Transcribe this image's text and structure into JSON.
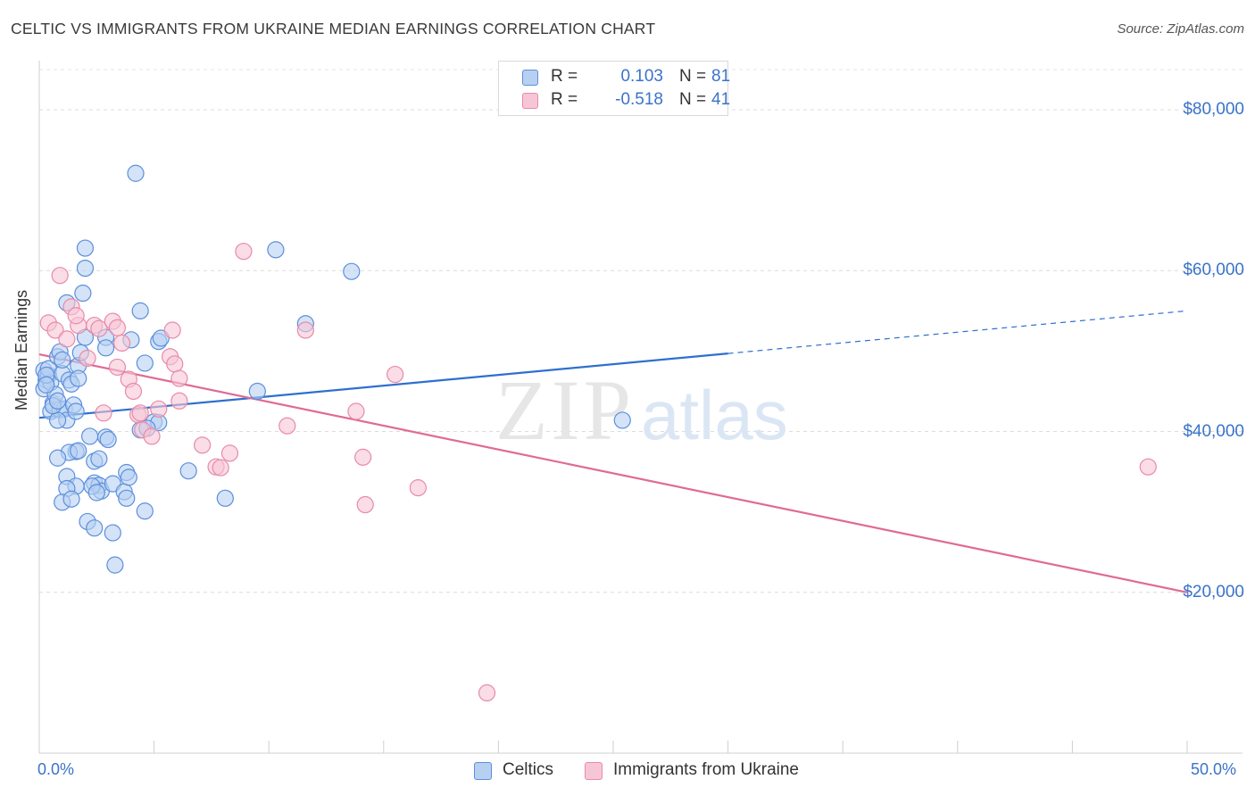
{
  "title": "CELTIC VS IMMIGRANTS FROM UKRAINE MEDIAN EARNINGS CORRELATION CHART",
  "source": "Source: ZipAtlas.com",
  "watermark": {
    "zip": "ZIP",
    "atlas": "atlas"
  },
  "legend_top": [
    {
      "r_label": "R =",
      "r_value": "0.103",
      "n_label": "N =",
      "n_value": "81",
      "color": "#5b8fdc",
      "fill": "#b7d0f2"
    },
    {
      "r_label": "R =",
      "r_value": "-0.518",
      "n_label": "N =",
      "n_value": "41",
      "color": "#e98aa8",
      "fill": "#f7c6d6"
    }
  ],
  "bottom_legend": [
    {
      "label": "Celtics",
      "color": "#5b8fdc",
      "fill": "#b7d0f2"
    },
    {
      "label": "Immigrants from Ukraine",
      "color": "#e98aa8",
      "fill": "#f7c6d6"
    }
  ],
  "chart_data": {
    "type": "scatter",
    "title": "CELTIC VS IMMIGRANTS FROM UKRAINE MEDIAN EARNINGS CORRELATION CHART",
    "xlabel": "",
    "ylabel": "Median Earnings",
    "xlim": [
      0,
      50
    ],
    "ylim": [
      0,
      85000
    ],
    "x_tick_labels": [
      "0.0%",
      "50.0%"
    ],
    "y_ticks": [
      20000,
      40000,
      60000,
      80000
    ],
    "y_tick_labels": [
      "$20,000",
      "$40,000",
      "$60,000",
      "$80,000"
    ],
    "grid": "horizontal dashed",
    "legend_placement": "top-center and bottom",
    "series": [
      {
        "name": "Celtics",
        "color": "#5b8fdc",
        "fill": "#b7d0f2",
        "trend": {
          "x0": 0,
          "y0": 41700,
          "x1": 30,
          "y1": 49700,
          "dashed_to_x": 50,
          "dashed_to_y": 55000
        },
        "points": [
          [
            0.2,
            47600
          ],
          [
            0.3,
            46400
          ],
          [
            0.2,
            45300
          ],
          [
            0.4,
            47000
          ],
          [
            0.5,
            46100
          ],
          [
            0.4,
            47800
          ],
          [
            0.6,
            43500
          ],
          [
            0.5,
            42500
          ],
          [
            0.7,
            44600
          ],
          [
            0.8,
            49300
          ],
          [
            0.9,
            49900
          ],
          [
            1.0,
            47200
          ],
          [
            0.9,
            42700
          ],
          [
            1.1,
            42800
          ],
          [
            1.2,
            41400
          ],
          [
            0.8,
            41400
          ],
          [
            1.3,
            46400
          ],
          [
            1.4,
            45900
          ],
          [
            1.5,
            43300
          ],
          [
            1.6,
            42500
          ],
          [
            1.7,
            48200
          ],
          [
            1.8,
            49800
          ],
          [
            2.0,
            51700
          ],
          [
            1.6,
            37500
          ],
          [
            1.3,
            37400
          ],
          [
            1.7,
            37600
          ],
          [
            0.8,
            36700
          ],
          [
            1.2,
            34400
          ],
          [
            1.6,
            33200
          ],
          [
            1.2,
            32900
          ],
          [
            1.0,
            31200
          ],
          [
            1.4,
            31600
          ],
          [
            2.2,
            39400
          ],
          [
            2.4,
            36300
          ],
          [
            2.6,
            36600
          ],
          [
            2.9,
            39300
          ],
          [
            3.0,
            39000
          ],
          [
            2.4,
            33600
          ],
          [
            2.6,
            33300
          ],
          [
            2.7,
            32600
          ],
          [
            2.3,
            33200
          ],
          [
            2.5,
            32400
          ],
          [
            3.2,
            33500
          ],
          [
            3.7,
            32500
          ],
          [
            3.8,
            34900
          ],
          [
            3.9,
            34300
          ],
          [
            3.8,
            31700
          ],
          [
            4.6,
            30100
          ],
          [
            2.1,
            28800
          ],
          [
            2.4,
            28000
          ],
          [
            3.2,
            27400
          ],
          [
            3.3,
            23400
          ],
          [
            2.0,
            60300
          ],
          [
            2.0,
            62800
          ],
          [
            1.9,
            57200
          ],
          [
            1.2,
            56000
          ],
          [
            2.9,
            51700
          ],
          [
            2.9,
            50400
          ],
          [
            4.0,
            51400
          ],
          [
            4.4,
            55000
          ],
          [
            4.6,
            48500
          ],
          [
            5.2,
            51200
          ],
          [
            5.3,
            51600
          ],
          [
            5.0,
            41200
          ],
          [
            5.2,
            41100
          ],
          [
            4.4,
            40200
          ],
          [
            4.7,
            40400
          ],
          [
            6.5,
            35100
          ],
          [
            8.1,
            31700
          ],
          [
            9.5,
            45000
          ],
          [
            10.3,
            62600
          ],
          [
            11.6,
            53400
          ],
          [
            13.6,
            59900
          ],
          [
            25.4,
            41400
          ],
          [
            4.2,
            72100
          ],
          [
            0.3,
            47000
          ],
          [
            0.6,
            43200
          ],
          [
            0.3,
            45800
          ],
          [
            1.0,
            48900
          ],
          [
            0.8,
            43800
          ],
          [
            1.7,
            46600
          ]
        ]
      },
      {
        "name": "Immigrants from Ukraine",
        "color": "#e98aa8",
        "fill": "#f7c6d6",
        "trend": {
          "x0": 0,
          "y0": 49600,
          "x1": 50,
          "y1": 20000
        },
        "points": [
          [
            0.4,
            53500
          ],
          [
            0.7,
            52600
          ],
          [
            0.9,
            59400
          ],
          [
            1.2,
            51500
          ],
          [
            1.4,
            55500
          ],
          [
            1.7,
            53200
          ],
          [
            1.6,
            54400
          ],
          [
            2.1,
            49100
          ],
          [
            2.4,
            53200
          ],
          [
            2.6,
            52800
          ],
          [
            3.2,
            53700
          ],
          [
            3.4,
            52900
          ],
          [
            3.6,
            51000
          ],
          [
            3.9,
            46500
          ],
          [
            4.1,
            45000
          ],
          [
            4.3,
            42100
          ],
          [
            4.5,
            40200
          ],
          [
            4.9,
            39400
          ],
          [
            5.2,
            42800
          ],
          [
            5.7,
            49300
          ],
          [
            5.9,
            48400
          ],
          [
            6.1,
            46600
          ],
          [
            6.1,
            43800
          ],
          [
            5.8,
            52600
          ],
          [
            3.4,
            48000
          ],
          [
            4.4,
            42300
          ],
          [
            2.8,
            42300
          ],
          [
            7.1,
            38300
          ],
          [
            7.7,
            35600
          ],
          [
            7.9,
            35500
          ],
          [
            8.3,
            37300
          ],
          [
            8.9,
            62400
          ],
          [
            10.8,
            40700
          ],
          [
            11.6,
            52600
          ],
          [
            13.8,
            42500
          ],
          [
            14.1,
            36800
          ],
          [
            14.2,
            30900
          ],
          [
            15.5,
            47100
          ],
          [
            16.5,
            33000
          ],
          [
            19.5,
            7500
          ],
          [
            48.3,
            35600
          ]
        ]
      }
    ]
  }
}
